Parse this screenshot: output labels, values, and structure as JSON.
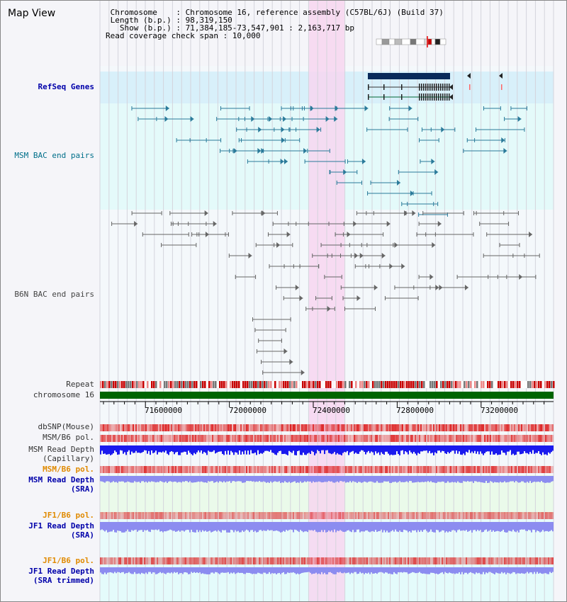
{
  "title": "Map View",
  "info": {
    "chromosome_line": " Chromosome    : Chromosome 16, reference assembly (C57BL/6J) (Build 37)",
    "length_line": " Length (b.p.) : 98,319,150",
    "show_line": "   Show (b.p.) : 71,384,185-73,547,901 : 2,163,717 bp",
    "coverage_line": "Read coverage check span : 10,000"
  },
  "tracks": {
    "refseq": "RefSeq Genes",
    "msm_bac": "MSM BAC end pairs",
    "b6n_bac": "B6N BAC end pairs",
    "repeat": "Repeat",
    "chromosome": "chromosome 16",
    "dbsnp": "dbSNP(Mouse)",
    "msm_b6_pol": "MSM/B6 pol.",
    "msm_read_depth_1": "MSM Read Depth",
    "msm_read_depth_1b": "(Capillary)",
    "msm_b6_pol_sra": "MSM/B6 pol.",
    "msm_read_depth_2": "MSM Read Depth",
    "msm_read_depth_2b": "(SRA)",
    "jf1_b6_pol": "JF1/B6 pol.",
    "jf1_read_depth": "JF1 Read Depth",
    "jf1_read_depth_b": "(SRA)",
    "jf1_b6_pol_2": "JF1/B6 pol.",
    "jf1_read_depth_3": "JF1 Read Depth",
    "jf1_read_depth_3b": "(SRA trimmed)"
  },
  "axis": {
    "ticks": [
      "71600000",
      "72000000",
      "72400000",
      "72800000",
      "73200000"
    ]
  },
  "colors": {
    "highlight": "#f7d6f0",
    "refseq_bg": "#d8f0fa",
    "msm_bg": "#e4fafa",
    "chromosome": "#006400",
    "depth_dark": "#1a1aee",
    "depth_light": "#8c8cf0"
  }
}
